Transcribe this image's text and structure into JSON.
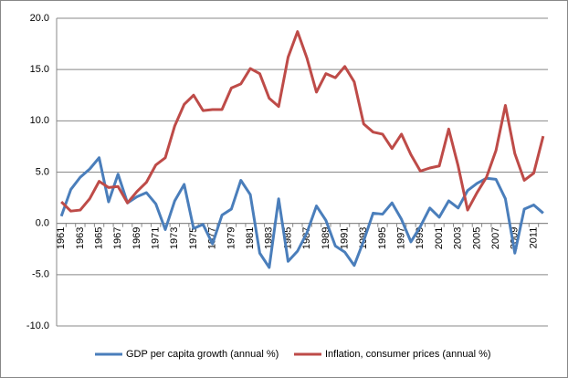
{
  "chart_data": {
    "type": "line",
    "categories": [
      "1961",
      null,
      "1963",
      null,
      "1965",
      null,
      "1967",
      null,
      "1969",
      null,
      "1971",
      null,
      "1973",
      null,
      "1975",
      null,
      "1977",
      null,
      "1979",
      null,
      "1981",
      null,
      "1983",
      null,
      "1985",
      null,
      "1987",
      null,
      "1989",
      null,
      "1991",
      null,
      "1993",
      null,
      "1995",
      null,
      "1997",
      null,
      "1999",
      null,
      "2001",
      null,
      "2003",
      null,
      "2005",
      null,
      "2007",
      null,
      "2009",
      null,
      "2011",
      null
    ],
    "series": [
      {
        "name": "GDP per capita growth (annual %)",
        "color": "#4a7ebb",
        "values": [
          0.7,
          3.3,
          4.5,
          5.3,
          6.4,
          2.1,
          4.8,
          2.0,
          2.6,
          3.0,
          1.9,
          -0.6,
          2.2,
          3.8,
          -0.5,
          -0.1,
          -2.0,
          0.8,
          1.4,
          4.2,
          2.8,
          -2.9,
          -4.3,
          2.4,
          -3.7,
          -2.7,
          -0.9,
          1.7,
          0.3,
          -2.2,
          -2.8,
          -4.1,
          -1.7,
          1.0,
          0.9,
          2.0,
          0.4,
          -1.8,
          -0.3,
          1.5,
          0.6,
          2.2,
          1.5,
          3.2,
          3.9,
          4.4,
          4.3,
          2.4,
          -2.9,
          1.4,
          1.8,
          1.0
        ]
      },
      {
        "name": "Inflation, consumer prices (annual %)",
        "color": "#be4b48",
        "values": [
          2.1,
          1.2,
          1.3,
          2.4,
          4.1,
          3.5,
          3.6,
          2.0,
          3.1,
          4.0,
          5.7,
          6.4,
          9.5,
          11.6,
          12.5,
          11.0,
          11.1,
          11.1,
          13.2,
          13.6,
          15.1,
          14.6,
          12.2,
          11.4,
          16.2,
          18.7,
          16.1,
          12.8,
          14.6,
          14.2,
          15.3,
          13.8,
          9.7,
          8.9,
          8.7,
          7.3,
          8.7,
          6.7,
          5.1,
          5.4,
          5.6,
          9.2,
          5.6,
          1.3,
          3.0,
          4.5,
          7.1,
          11.5,
          6.8,
          4.2,
          4.9,
          8.5
        ]
      }
    ],
    "ylim": [
      -10,
      20
    ],
    "yticks": [
      {
        "value": -10,
        "label": "-10.0"
      },
      {
        "value": -5,
        "label": "-5.0"
      },
      {
        "value": 0,
        "label": "0.0"
      },
      {
        "value": 5,
        "label": "5.0"
      },
      {
        "value": 10,
        "label": "10.0"
      },
      {
        "value": 15,
        "label": "15.0"
      },
      {
        "value": 20,
        "label": "20.0"
      }
    ],
    "grid": true,
    "legend": "bottom"
  }
}
